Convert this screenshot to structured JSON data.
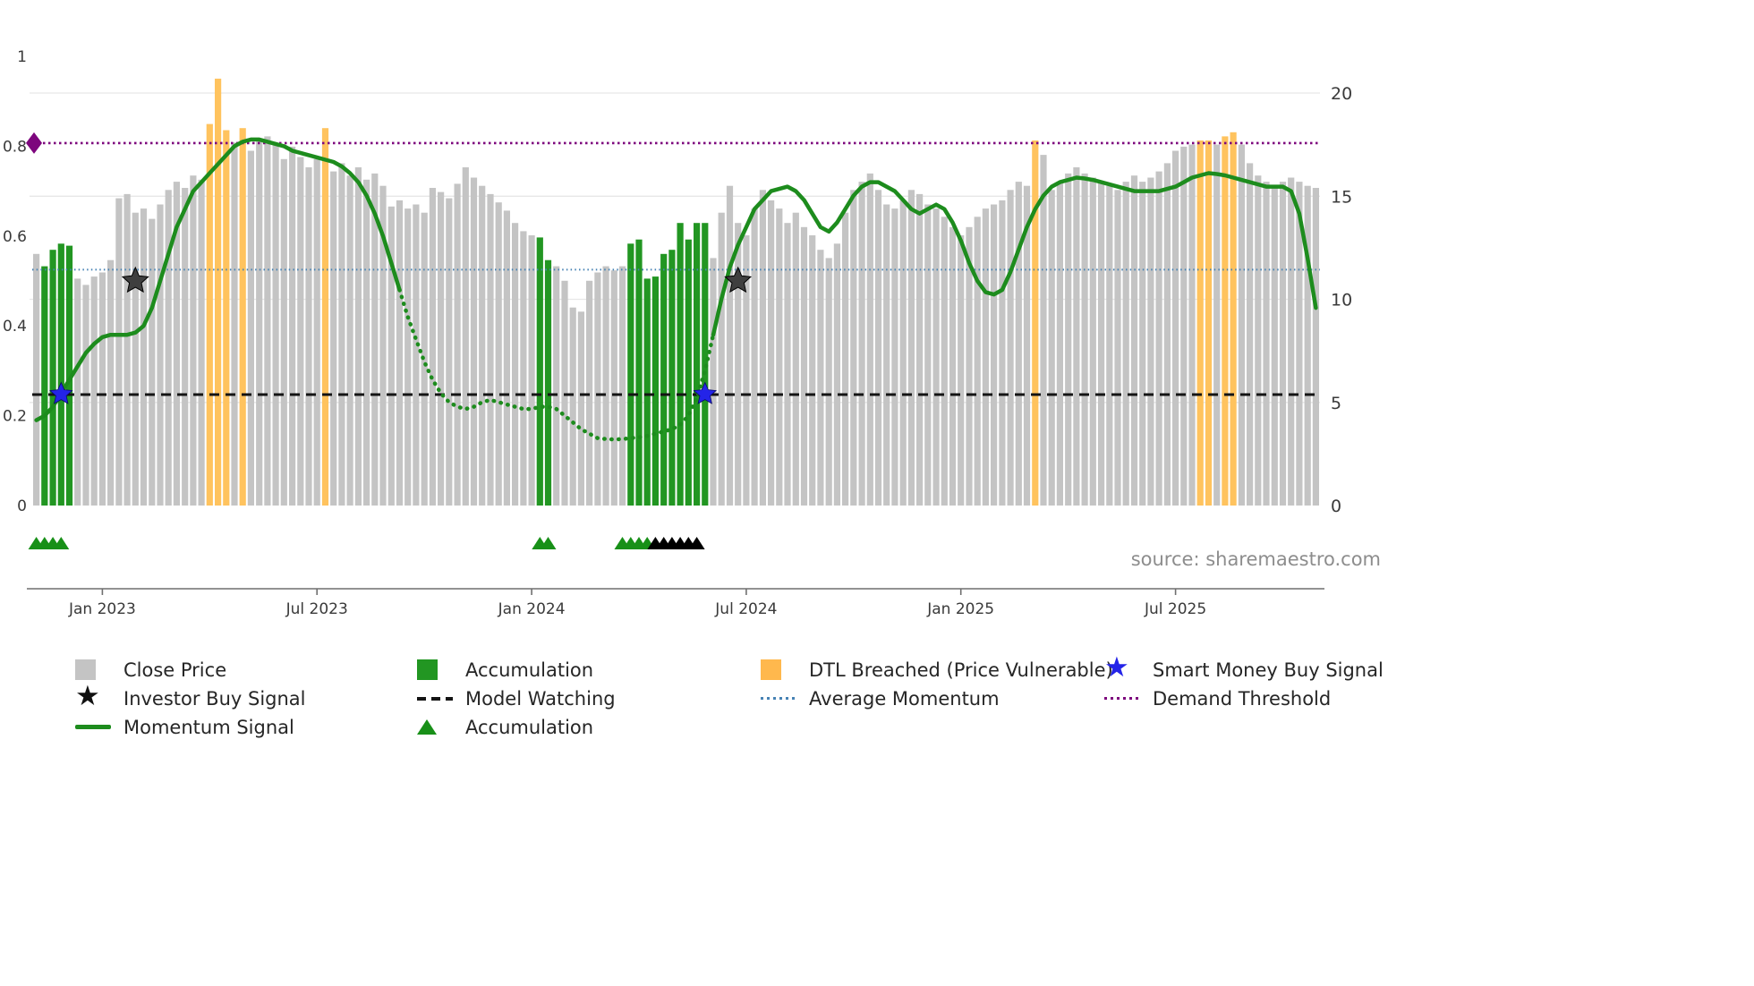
{
  "source": {
    "text": "source: sharemaestro.com"
  },
  "colors": {
    "bar_gray": "#c4c4c4",
    "bar_green": "#229622",
    "bar_orange": "#ffc35e",
    "momentum_line": "#1d8c1d",
    "average_momentum": "#4682b4",
    "model_watching": "#141414",
    "demand_threshold": "#7d067d",
    "investor_star": "#3f3f3f",
    "smart_money_star": "#2424e8",
    "accumulation_triangle": "#189018",
    "watch_triangle": "#000000",
    "grid": "#e7e7e7",
    "spine": "#6f6f6f"
  },
  "chart_data": {
    "type": "bar+line",
    "x_axis": {
      "tick_labels": [
        "Jan 2023",
        "Jul 2023",
        "Jan 2024",
        "Jul 2024",
        "Jan 2025",
        "Jul 2025"
      ],
      "tick_indices": [
        8,
        34,
        60,
        86,
        112,
        138
      ]
    },
    "left_axis": {
      "ticks": [
        0,
        0.2,
        0.4,
        0.6,
        0.8,
        1
      ],
      "range": [
        0,
        1
      ]
    },
    "right_axis": {
      "ticks": [
        0,
        5,
        10,
        15,
        20
      ],
      "range": [
        0,
        20
      ]
    },
    "close_price": {
      "name": "Close Price",
      "axis": "right",
      "values": [
        12.2,
        11.6,
        12.4,
        12.7,
        12.6,
        11.0,
        10.7,
        11.1,
        11.3,
        11.9,
        14.9,
        15.1,
        14.2,
        14.4,
        13.9,
        14.6,
        15.3,
        15.7,
        15.4,
        16.0,
        15.8,
        18.5,
        20.7,
        18.2,
        17.6,
        18.3,
        17.2,
        17.7,
        17.9,
        17.5,
        16.8,
        17.4,
        16.9,
        16.4,
        16.8,
        18.3,
        16.2,
        16.6,
        16.0,
        16.4,
        15.8,
        16.1,
        15.5,
        14.5,
        14.8,
        14.4,
        14.6,
        14.2,
        15.4,
        15.2,
        14.9,
        15.6,
        16.4,
        15.9,
        15.5,
        15.1,
        14.7,
        14.3,
        13.7,
        13.3,
        13.1,
        13.0,
        11.9,
        11.6,
        10.9,
        9.6,
        9.4,
        10.9,
        11.3,
        11.6,
        11.4,
        11.6,
        12.7,
        12.9,
        11.0,
        11.1,
        12.2,
        12.4,
        13.7,
        12.9,
        13.7,
        13.7,
        12.0,
        14.2,
        15.5,
        13.7,
        13.1,
        14.4,
        15.3,
        14.8,
        14.4,
        13.7,
        14.2,
        13.5,
        13.1,
        12.4,
        12.0,
        12.7,
        14.2,
        15.3,
        15.7,
        16.1,
        15.3,
        14.6,
        14.4,
        14.8,
        15.3,
        15.1,
        14.6,
        14.4,
        14.0,
        13.5,
        13.1,
        13.5,
        14.0,
        14.4,
        14.6,
        14.8,
        15.3,
        15.7,
        15.5,
        17.7,
        17.0,
        15.3,
        15.7,
        16.1,
        16.4,
        16.1,
        15.9,
        15.7,
        15.5,
        15.3,
        15.7,
        16.0,
        15.7,
        15.9,
        16.2,
        16.6,
        17.2,
        17.4,
        17.5,
        17.7,
        17.7,
        17.5,
        17.9,
        18.1,
        17.5,
        16.6,
        16.0,
        15.7,
        15.5,
        15.7,
        15.9,
        15.7,
        15.5,
        15.4
      ],
      "green_indices": [
        1,
        2,
        3,
        4,
        61,
        62,
        72,
        73,
        74,
        75,
        76,
        77,
        78,
        79,
        80,
        81
      ],
      "orange_indices": [
        21,
        22,
        23,
        25,
        35,
        121,
        141,
        142,
        144,
        145
      ]
    },
    "momentum": {
      "name": "Momentum Signal",
      "axis": "left",
      "values": [
        0.19,
        0.2,
        0.22,
        0.25,
        0.28,
        0.31,
        0.34,
        0.36,
        0.375,
        0.38,
        0.38,
        0.38,
        0.385,
        0.4,
        0.44,
        0.5,
        0.56,
        0.62,
        0.66,
        0.7,
        0.72,
        0.74,
        0.76,
        0.78,
        0.8,
        0.81,
        0.815,
        0.815,
        0.81,
        0.805,
        0.8,
        0.79,
        0.785,
        0.78,
        0.775,
        0.77,
        0.765,
        0.755,
        0.74,
        0.72,
        0.69,
        0.65,
        0.6,
        0.54,
        0.48,
        0.42,
        0.37,
        0.32,
        0.28,
        0.25,
        0.23,
        0.22,
        0.215,
        0.22,
        0.23,
        0.235,
        0.23,
        0.225,
        0.22,
        0.215,
        0.215,
        0.22,
        0.22,
        0.215,
        0.2,
        0.185,
        0.17,
        0.16,
        0.15,
        0.148,
        0.147,
        0.148,
        0.15,
        0.152,
        0.155,
        0.16,
        0.165,
        0.17,
        0.18,
        0.2,
        0.24,
        0.3,
        0.38,
        0.46,
        0.53,
        0.58,
        0.62,
        0.66,
        0.68,
        0.7,
        0.705,
        0.71,
        0.7,
        0.68,
        0.65,
        0.62,
        0.61,
        0.63,
        0.66,
        0.69,
        0.71,
        0.72,
        0.72,
        0.71,
        0.7,
        0.68,
        0.66,
        0.65,
        0.66,
        0.67,
        0.66,
        0.63,
        0.59,
        0.54,
        0.5,
        0.475,
        0.47,
        0.48,
        0.52,
        0.57,
        0.62,
        0.66,
        0.69,
        0.71,
        0.72,
        0.725,
        0.73,
        0.728,
        0.725,
        0.72,
        0.715,
        0.71,
        0.705,
        0.7,
        0.7,
        0.7,
        0.7,
        0.705,
        0.71,
        0.72,
        0.73,
        0.735,
        0.74,
        0.738,
        0.735,
        0.73,
        0.725,
        0.72,
        0.715,
        0.71,
        0.71,
        0.71,
        0.7,
        0.65,
        0.55,
        0.44
      ],
      "dashed_range": [
        44,
        82
      ]
    },
    "reference_lines": [
      {
        "name": "Demand Threshold",
        "value": 0.807,
        "color_key": "demand_threshold",
        "dash": "2.5 3.5",
        "width": 2.6
      },
      {
        "name": "Average Momentum",
        "value": 0.525,
        "color_key": "average_momentum",
        "dash": "1.5 3.2",
        "width": 2
      },
      {
        "name": "Model Watching",
        "value": 0.247,
        "color_key": "model_watching",
        "dash": "11 7",
        "width": 3
      }
    ],
    "markers": {
      "investor_buy": {
        "shape": "star",
        "color_key": "investor_star",
        "size": 15,
        "points": [
          {
            "i": 12,
            "v": 0.5
          },
          {
            "i": 85,
            "v": 0.5
          }
        ]
      },
      "smart_money_buy": {
        "shape": "star",
        "color_key": "smart_money_star",
        "size": 13,
        "points": [
          {
            "i": 3,
            "v": 0.248
          },
          {
            "i": 81,
            "v": 0.248
          }
        ]
      },
      "demand_origin": {
        "shape": "diamond",
        "color_key": "demand_threshold",
        "points": [
          {
            "i": 0,
            "v": 0.807
          }
        ]
      },
      "accumulation_triangles": {
        "shape": "triangle",
        "color_key": "accumulation_triangle",
        "indices": [
          0,
          1,
          2,
          3,
          61,
          62,
          71,
          72,
          73,
          74
        ]
      },
      "watch_triangles": {
        "shape": "triangle",
        "color_key": "watch_triangle",
        "indices": [
          75,
          76,
          77,
          78,
          79,
          80
        ]
      }
    }
  },
  "legend": {
    "columns": [
      {
        "items": [
          {
            "key": "close-price",
            "swatch": "square",
            "color": "#c4c4c4",
            "label": "Close Price"
          },
          {
            "key": "investor-buy-signal",
            "swatch": "star",
            "color": "#111111",
            "label": "Investor Buy Signal"
          },
          {
            "key": "momentum-signal",
            "swatch": "line",
            "color": "#1d8c1d",
            "label": "Momentum Signal"
          }
        ]
      },
      {
        "items": [
          {
            "key": "accumulation-bars",
            "swatch": "square",
            "color": "#229622",
            "label": "Accumulation"
          },
          {
            "key": "model-watching",
            "swatch": "dashed",
            "color": "#141414",
            "label": "Model Watching"
          },
          {
            "key": "accumulation-markers",
            "swatch": "triangle",
            "color": "#189018",
            "label": "Accumulation"
          }
        ]
      },
      {
        "items": [
          {
            "key": "dtl-breached",
            "swatch": "square",
            "color": "#ffb84d",
            "label": "DTL Breached (Price Vulnerable)"
          },
          {
            "key": "average-momentum",
            "swatch": "dotted",
            "color": "#4682b4",
            "label": "Average Momentum"
          }
        ]
      },
      {
        "items": [
          {
            "key": "smart-money-buy-signal",
            "swatch": "star",
            "color": "#2424e8",
            "label": "Smart Money Buy Signal"
          },
          {
            "key": "demand-threshold",
            "swatch": "dotted",
            "color": "#7d067d",
            "label": "Demand Threshold"
          }
        ]
      }
    ]
  }
}
